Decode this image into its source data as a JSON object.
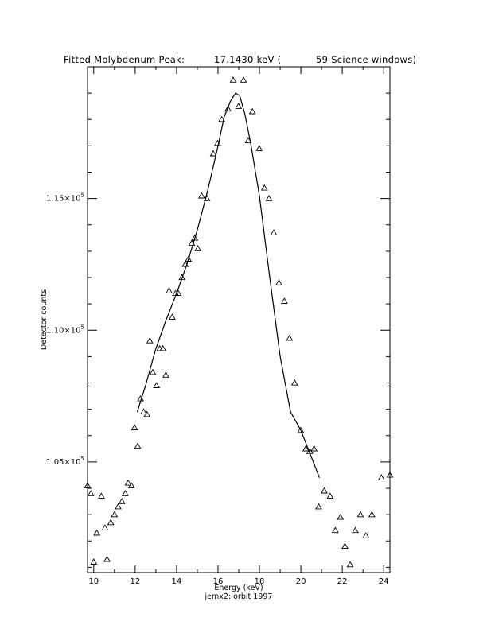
{
  "chart_data": {
    "type": "scatter",
    "title": "Fitted Molybdenum Peak:",
    "title_value": "17.1430 keV (",
    "title_suffix": "59 Science windows)",
    "xlabel": "Energy (keV)",
    "subtitle": "jemx2: orbit 1997",
    "ylabel": "Detector counts",
    "xlim": [
      9.7,
      24.3
    ],
    "ylim": [
      100800.0,
      120000.0
    ],
    "x_ticks": [
      10,
      12,
      14,
      16,
      18,
      20,
      22,
      24
    ],
    "x_tick_labels": [
      "10",
      "12",
      "14",
      "16",
      "18",
      "20",
      "22",
      "24"
    ],
    "y_ticks": [
      105000,
      110000,
      115000
    ],
    "y_tick_labels": [
      {
        "mant": "1.05×10",
        "exp": "5"
      },
      {
        "mant": "1.10×10",
        "exp": "5"
      },
      {
        "mant": "1.15×10",
        "exp": "5"
      }
    ],
    "grid": false,
    "series": [
      {
        "marker": "triangle",
        "x": [
          9.7,
          9.86,
          10.0,
          10.15,
          10.37,
          10.54,
          10.64,
          10.82,
          11.0,
          11.18,
          11.36,
          11.52,
          11.66,
          11.82,
          11.97,
          12.12,
          12.26,
          12.41,
          12.57,
          12.71,
          12.85,
          13.03,
          13.19,
          13.34,
          13.48,
          13.64,
          13.79,
          13.95,
          14.08,
          14.26,
          14.42,
          14.57,
          14.73,
          14.88,
          15.03,
          15.21,
          15.47,
          15.77,
          15.98,
          16.18,
          16.48,
          16.73,
          16.99,
          17.23,
          17.46,
          17.66,
          17.99,
          18.24,
          18.46,
          18.69,
          18.94,
          19.2,
          19.45,
          19.7,
          19.99,
          20.24,
          20.43,
          20.64,
          20.86,
          21.13,
          21.41,
          21.66,
          21.91,
          22.13,
          22.38,
          22.63,
          22.88,
          23.14,
          23.43,
          23.89,
          24.3
        ],
        "y": [
          104100,
          103800,
          101200,
          102300,
          103700,
          102500,
          101300,
          102700,
          103000,
          103300,
          103500,
          103800,
          104200,
          104100,
          106300,
          105600,
          107400,
          106900,
          106800,
          109600,
          108400,
          107900,
          109300,
          109300,
          108300,
          111500,
          110500,
          111400,
          111400,
          112000,
          112500,
          112700,
          113300,
          113500,
          113100,
          115100,
          115000,
          116700,
          117100,
          118000,
          118400,
          119500,
          118500,
          119500,
          117200,
          118300,
          116900,
          115400,
          115000,
          113700,
          111800,
          111100,
          109700,
          108000,
          106200,
          105500,
          105400,
          105500,
          103300,
          103900,
          103700,
          102400,
          102900,
          101800,
          101100,
          102400,
          103000,
          102200,
          103000,
          104400,
          104500
        ]
      },
      {
        "marker": "line",
        "x": [
          12.1,
          12.5,
          13.0,
          13.5,
          14.0,
          14.5,
          15.0,
          15.5,
          16.0,
          16.3,
          16.6,
          16.85,
          17.05,
          17.3,
          17.6,
          18.0,
          18.5,
          19.0,
          19.5,
          20.0,
          20.5,
          20.9
        ],
        "y": [
          106900,
          107900,
          109300,
          110400,
          111400,
          112500,
          113800,
          115300,
          117000,
          118100,
          118700,
          119000,
          118900,
          118200,
          117000,
          115100,
          112000,
          109000,
          106900,
          106200,
          105200,
          104400
        ]
      }
    ]
  }
}
